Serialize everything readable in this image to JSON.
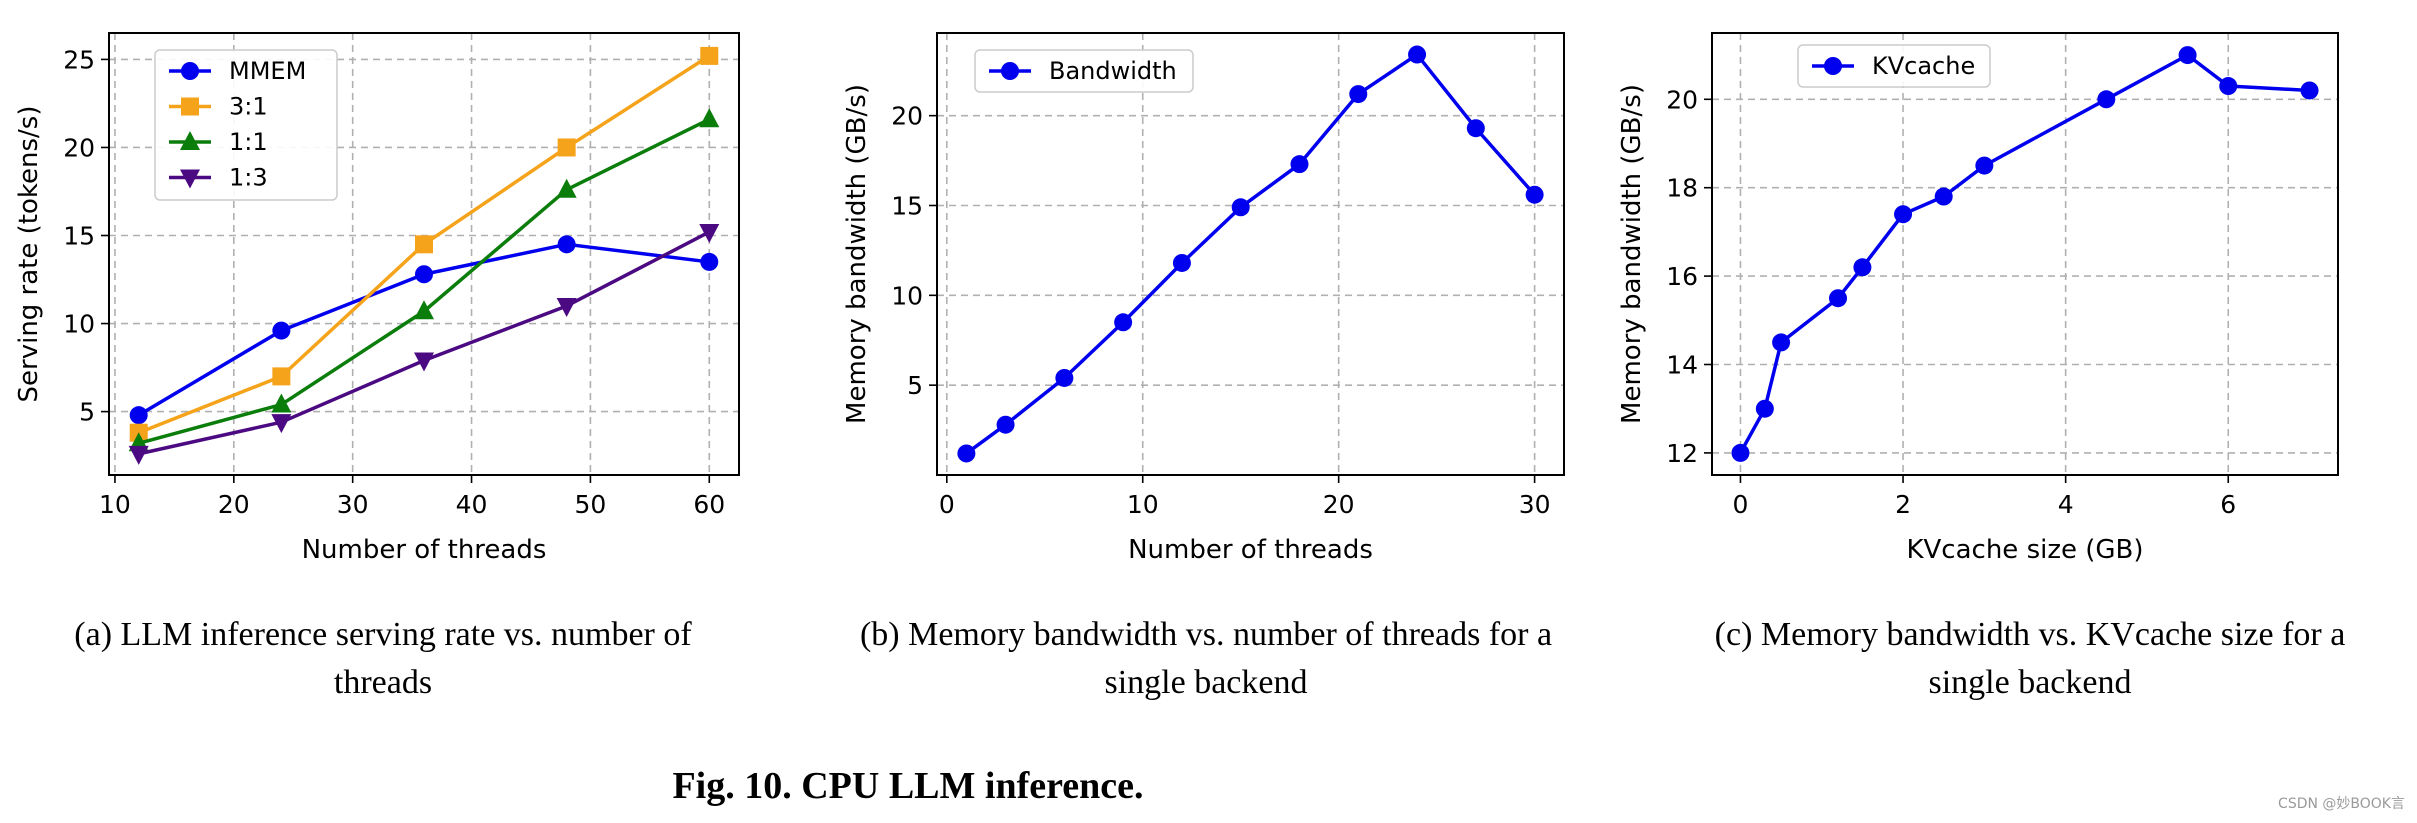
{
  "figure_title": "Fig. 10. CPU LLM inference.",
  "watermark": "CSDN @妙BOOK言",
  "colors": {
    "mmem": "#0000ee",
    "r31": "#f5a31a",
    "r11": "#0b7d0b",
    "r13": "#4b0a82",
    "grid": "#b0b0b0",
    "axis": "#000000"
  },
  "chart_data": [
    {
      "id": "a",
      "type": "line",
      "caption": [
        "(a)  LLM inference serving rate vs. number of",
        "threads"
      ],
      "xlabel": "Number of threads",
      "ylabel": "Serving rate (tokens/s)",
      "xlim": [
        9.5,
        62.5
      ],
      "ylim": [
        1.4,
        26.5
      ],
      "xticks": [
        10,
        20,
        30,
        40,
        50,
        60
      ],
      "yticks": [
        5,
        10,
        15,
        20,
        25
      ],
      "grid": true,
      "legend": "top-left",
      "series": [
        {
          "name": "MMEM",
          "marker": "circle",
          "color_key": "mmem",
          "x": [
            12,
            24,
            36,
            48,
            60
          ],
          "y": [
            4.8,
            9.6,
            12.8,
            14.5,
            13.5
          ]
        },
        {
          "name": "3:1",
          "marker": "square",
          "color_key": "r31",
          "x": [
            12,
            24,
            36,
            48,
            60
          ],
          "y": [
            3.8,
            7.0,
            14.5,
            20.0,
            25.2
          ]
        },
        {
          "name": "1:1",
          "marker": "triangle-up",
          "color_key": "r11",
          "x": [
            12,
            24,
            36,
            48,
            60
          ],
          "y": [
            3.2,
            5.4,
            10.7,
            17.6,
            21.6
          ]
        },
        {
          "name": "1:3",
          "marker": "triangle-down",
          "color_key": "r13",
          "x": [
            12,
            24,
            36,
            48,
            60
          ],
          "y": [
            2.6,
            4.4,
            7.9,
            11.0,
            15.2
          ]
        }
      ]
    },
    {
      "id": "b",
      "type": "line",
      "caption": [
        "(b)  Memory bandwidth vs. number of threads for a",
        "single backend"
      ],
      "xlabel": "Number of threads",
      "ylabel": "Memory bandwidth (GB/s)",
      "xlim": [
        -0.5,
        31.5
      ],
      "ylim": [
        0.0,
        24.6
      ],
      "xticks": [
        0,
        10,
        20,
        30
      ],
      "yticks": [
        5,
        10,
        15,
        20
      ],
      "grid": true,
      "legend": "top-left",
      "series": [
        {
          "name": "Bandwidth",
          "marker": "circle",
          "color_key": "mmem",
          "x": [
            1,
            3,
            6,
            9,
            12,
            15,
            18,
            21,
            24,
            27,
            30
          ],
          "y": [
            1.2,
            2.8,
            5.4,
            8.5,
            11.8,
            14.9,
            17.3,
            21.2,
            23.4,
            19.3,
            15.6
          ]
        }
      ]
    },
    {
      "id": "c",
      "type": "line",
      "caption": [
        "(c)  Memory bandwidth vs. KVcache size for a",
        "single backend"
      ],
      "xlabel": "KVcache size (GB)",
      "ylabel": "Memory bandwidth (GB/s)",
      "xlim": [
        -0.35,
        7.35
      ],
      "ylim": [
        11.5,
        21.5
      ],
      "xticks": [
        0,
        2,
        4,
        6
      ],
      "yticks": [
        12,
        14,
        16,
        18,
        20
      ],
      "grid": true,
      "legend": "top-left",
      "series": [
        {
          "name": "KVcache",
          "marker": "circle",
          "color_key": "mmem",
          "x": [
            0,
            0.3,
            0.5,
            1.2,
            1.5,
            2.0,
            2.5,
            3.0,
            4.5,
            5.5,
            6.0,
            7.0
          ],
          "y": [
            12.0,
            13.0,
            14.5,
            15.5,
            16.2,
            17.4,
            17.8,
            18.5,
            20.0,
            21.0,
            20.3,
            20.2
          ]
        }
      ]
    }
  ]
}
